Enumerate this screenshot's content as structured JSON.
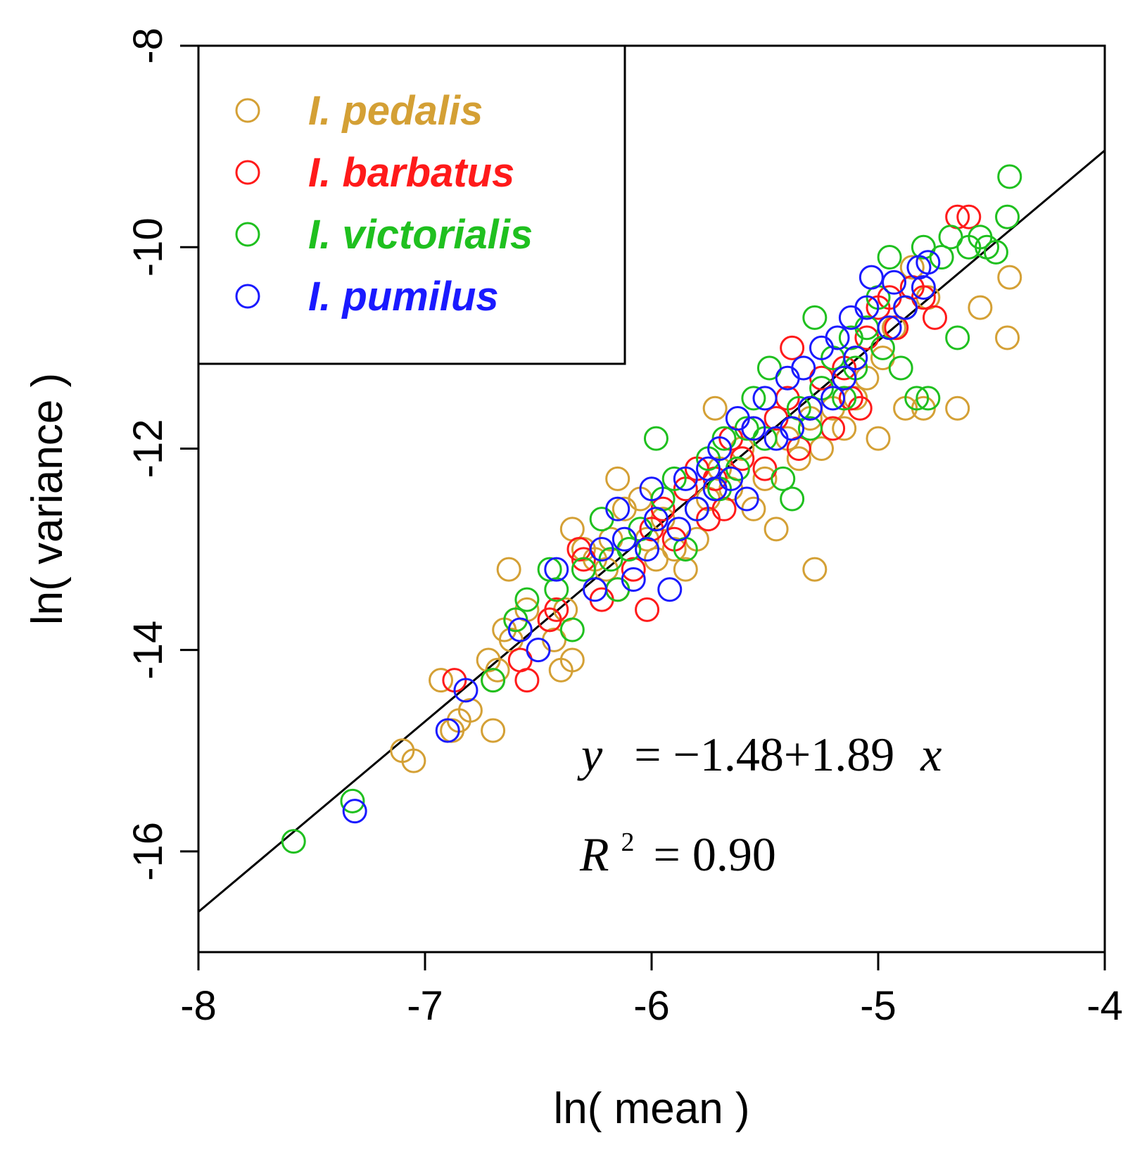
{
  "chart_data": {
    "type": "scatter",
    "title": "",
    "xlabel": "ln( mean )",
    "ylabel": "ln( variance )",
    "xlim": [
      -8,
      -4
    ],
    "ylim": [
      -17,
      -8
    ],
    "xticks": [
      -8,
      -7,
      -6,
      -5,
      -4
    ],
    "yticks": [
      -16,
      -14,
      -12,
      -10,
      -8
    ],
    "xtick_labels": [
      "-8",
      "-7",
      "-6",
      "-5",
      "-4"
    ],
    "ytick_labels": [
      "-16",
      "-14",
      "-12",
      "-10",
      "-8"
    ],
    "legend_position": "top-left",
    "fit": {
      "intercept": -1.48,
      "slope": 1.89,
      "equation_y": "y",
      "equation_rest": "= −1.48+1.89",
      "equation_x": "x",
      "r2_base": "R",
      "r2_sup": "2",
      "r2_rest": "= 0.90"
    },
    "series": [
      {
        "name": "I. pedalis",
        "color": "#D4A035",
        "points": [
          [
            -7.1,
            -15.0
          ],
          [
            -7.05,
            -15.1
          ],
          [
            -6.93,
            -14.3
          ],
          [
            -6.88,
            -14.8
          ],
          [
            -6.85,
            -14.7
          ],
          [
            -6.8,
            -14.6
          ],
          [
            -6.72,
            -14.1
          ],
          [
            -6.7,
            -14.3
          ],
          [
            -6.7,
            -14.8
          ],
          [
            -6.68,
            -14.2
          ],
          [
            -6.65,
            -13.8
          ],
          [
            -6.62,
            -13.9
          ],
          [
            -6.6,
            -13.7
          ],
          [
            -6.55,
            -13.6
          ],
          [
            -6.63,
            -13.2
          ],
          [
            -6.45,
            -13.7
          ],
          [
            -6.43,
            -13.9
          ],
          [
            -6.4,
            -14.2
          ],
          [
            -6.35,
            -14.1
          ],
          [
            -6.38,
            -13.6
          ],
          [
            -6.35,
            -12.8
          ],
          [
            -6.3,
            -13.0
          ],
          [
            -6.25,
            -13.1
          ],
          [
            -6.2,
            -13.2
          ],
          [
            -6.18,
            -12.9
          ],
          [
            -6.15,
            -12.3
          ],
          [
            -6.12,
            -12.6
          ],
          [
            -6.05,
            -12.5
          ],
          [
            -6.02,
            -12.9
          ],
          [
            -5.98,
            -13.1
          ],
          [
            -5.95,
            -12.7
          ],
          [
            -5.9,
            -13.0
          ],
          [
            -5.85,
            -13.2
          ],
          [
            -5.8,
            -12.9
          ],
          [
            -5.75,
            -12.5
          ],
          [
            -5.72,
            -11.6
          ],
          [
            -5.7,
            -12.2
          ],
          [
            -5.65,
            -12.4
          ],
          [
            -5.6,
            -12.0
          ],
          [
            -5.55,
            -12.6
          ],
          [
            -5.5,
            -12.3
          ],
          [
            -5.45,
            -12.8
          ],
          [
            -5.4,
            -11.9
          ],
          [
            -5.35,
            -12.1
          ],
          [
            -5.3,
            -11.7
          ],
          [
            -5.28,
            -13.2
          ],
          [
            -5.25,
            -12.0
          ],
          [
            -5.2,
            -11.6
          ],
          [
            -5.15,
            -11.8
          ],
          [
            -5.1,
            -11.5
          ],
          [
            -5.05,
            -11.3
          ],
          [
            -5.0,
            -11.9
          ],
          [
            -4.98,
            -11.1
          ],
          [
            -4.93,
            -10.8
          ],
          [
            -4.88,
            -11.6
          ],
          [
            -4.85,
            -10.2
          ],
          [
            -4.8,
            -11.6
          ],
          [
            -4.78,
            -10.5
          ],
          [
            -4.65,
            -11.6
          ],
          [
            -4.55,
            -10.6
          ],
          [
            -4.43,
            -10.9
          ],
          [
            -4.42,
            -10.3
          ]
        ]
      },
      {
        "name": "I. barbatus",
        "color": "#FF1A1A",
        "points": [
          [
            -6.87,
            -14.3
          ],
          [
            -6.58,
            -14.1
          ],
          [
            -6.55,
            -14.3
          ],
          [
            -6.45,
            -13.7
          ],
          [
            -6.42,
            -13.6
          ],
          [
            -6.32,
            -13.0
          ],
          [
            -6.3,
            -13.1
          ],
          [
            -6.22,
            -13.5
          ],
          [
            -6.15,
            -13.4
          ],
          [
            -6.08,
            -13.2
          ],
          [
            -6.02,
            -13.6
          ],
          [
            -6.0,
            -12.8
          ],
          [
            -5.95,
            -12.6
          ],
          [
            -5.9,
            -12.9
          ],
          [
            -5.85,
            -12.4
          ],
          [
            -5.8,
            -12.2
          ],
          [
            -5.75,
            -12.7
          ],
          [
            -5.72,
            -12.3
          ],
          [
            -5.68,
            -12.6
          ],
          [
            -5.65,
            -11.9
          ],
          [
            -5.6,
            -12.1
          ],
          [
            -5.55,
            -11.8
          ],
          [
            -5.5,
            -12.2
          ],
          [
            -5.45,
            -11.7
          ],
          [
            -5.4,
            -11.5
          ],
          [
            -5.38,
            -11.0
          ],
          [
            -5.35,
            -12.0
          ],
          [
            -5.3,
            -11.6
          ],
          [
            -5.25,
            -11.3
          ],
          [
            -5.2,
            -11.8
          ],
          [
            -5.15,
            -11.2
          ],
          [
            -5.12,
            -11.5
          ],
          [
            -5.08,
            -11.6
          ],
          [
            -5.05,
            -10.9
          ],
          [
            -5.0,
            -10.6
          ],
          [
            -4.95,
            -10.5
          ],
          [
            -4.92,
            -10.8
          ],
          [
            -4.85,
            -10.4
          ],
          [
            -4.8,
            -10.5
          ],
          [
            -4.75,
            -10.7
          ],
          [
            -4.65,
            -9.7
          ],
          [
            -4.6,
            -9.7
          ]
        ]
      },
      {
        "name": "I. victorialis",
        "color": "#1FC01F",
        "points": [
          [
            -7.58,
            -15.9
          ],
          [
            -7.32,
            -15.5
          ],
          [
            -6.7,
            -14.3
          ],
          [
            -6.6,
            -13.7
          ],
          [
            -6.55,
            -13.5
          ],
          [
            -6.45,
            -13.2
          ],
          [
            -6.42,
            -13.4
          ],
          [
            -6.35,
            -13.8
          ],
          [
            -6.3,
            -13.2
          ],
          [
            -6.22,
            -12.7
          ],
          [
            -6.18,
            -13.1
          ],
          [
            -6.15,
            -13.4
          ],
          [
            -6.1,
            -13.0
          ],
          [
            -6.05,
            -12.8
          ],
          [
            -5.98,
            -11.9
          ],
          [
            -5.95,
            -12.5
          ],
          [
            -5.9,
            -12.3
          ],
          [
            -5.85,
            -13.0
          ],
          [
            -5.8,
            -12.6
          ],
          [
            -5.75,
            -12.1
          ],
          [
            -5.7,
            -12.4
          ],
          [
            -5.68,
            -11.9
          ],
          [
            -5.62,
            -12.2
          ],
          [
            -5.58,
            -11.8
          ],
          [
            -5.55,
            -11.5
          ],
          [
            -5.5,
            -11.9
          ],
          [
            -5.48,
            -11.2
          ],
          [
            -5.42,
            -12.3
          ],
          [
            -5.38,
            -12.5
          ],
          [
            -5.35,
            -11.6
          ],
          [
            -5.3,
            -11.8
          ],
          [
            -5.28,
            -10.7
          ],
          [
            -5.25,
            -11.4
          ],
          [
            -5.2,
            -11.1
          ],
          [
            -5.15,
            -11.5
          ],
          [
            -5.12,
            -10.9
          ],
          [
            -5.1,
            -11.2
          ],
          [
            -5.05,
            -10.8
          ],
          [
            -5.0,
            -10.5
          ],
          [
            -4.98,
            -11.0
          ],
          [
            -4.95,
            -10.1
          ],
          [
            -4.9,
            -11.2
          ],
          [
            -4.88,
            -10.6
          ],
          [
            -4.83,
            -11.5
          ],
          [
            -4.8,
            -10.0
          ],
          [
            -4.78,
            -11.5
          ],
          [
            -4.72,
            -10.1
          ],
          [
            -4.68,
            -9.9
          ],
          [
            -4.65,
            -10.9
          ],
          [
            -4.6,
            -10.0
          ],
          [
            -4.55,
            -9.9
          ],
          [
            -4.52,
            -10.0
          ],
          [
            -4.48,
            -10.05
          ],
          [
            -4.43,
            -9.7
          ],
          [
            -4.42,
            -9.3
          ]
        ]
      },
      {
        "name": "I. pumilus",
        "color": "#1A1AFF",
        "points": [
          [
            -7.31,
            -15.6
          ],
          [
            -6.9,
            -14.8
          ],
          [
            -6.82,
            -14.4
          ],
          [
            -6.58,
            -13.8
          ],
          [
            -6.5,
            -14.0
          ],
          [
            -6.42,
            -13.2
          ],
          [
            -6.25,
            -13.4
          ],
          [
            -6.22,
            -13.0
          ],
          [
            -6.15,
            -12.6
          ],
          [
            -6.12,
            -12.9
          ],
          [
            -6.08,
            -13.3
          ],
          [
            -6.02,
            -13.0
          ],
          [
            -6.0,
            -12.4
          ],
          [
            -5.98,
            -12.7
          ],
          [
            -5.92,
            -13.4
          ],
          [
            -5.88,
            -12.8
          ],
          [
            -5.85,
            -12.3
          ],
          [
            -5.8,
            -12.6
          ],
          [
            -5.75,
            -12.2
          ],
          [
            -5.72,
            -12.4
          ],
          [
            -5.7,
            -12.0
          ],
          [
            -5.65,
            -12.3
          ],
          [
            -5.62,
            -11.7
          ],
          [
            -5.58,
            -12.5
          ],
          [
            -5.55,
            -11.8
          ],
          [
            -5.5,
            -11.5
          ],
          [
            -5.45,
            -11.9
          ],
          [
            -5.4,
            -11.3
          ],
          [
            -5.38,
            -11.8
          ],
          [
            -5.33,
            -11.2
          ],
          [
            -5.3,
            -11.6
          ],
          [
            -5.25,
            -11.0
          ],
          [
            -5.2,
            -11.5
          ],
          [
            -5.18,
            -10.9
          ],
          [
            -5.15,
            -11.3
          ],
          [
            -5.12,
            -10.7
          ],
          [
            -5.1,
            -11.1
          ],
          [
            -5.05,
            -10.6
          ],
          [
            -5.03,
            -10.3
          ],
          [
            -4.95,
            -10.8
          ],
          [
            -4.93,
            -10.35
          ],
          [
            -4.88,
            -10.6
          ],
          [
            -4.82,
            -10.2
          ],
          [
            -4.8,
            -10.4
          ],
          [
            -4.78,
            -10.15
          ]
        ]
      }
    ]
  }
}
